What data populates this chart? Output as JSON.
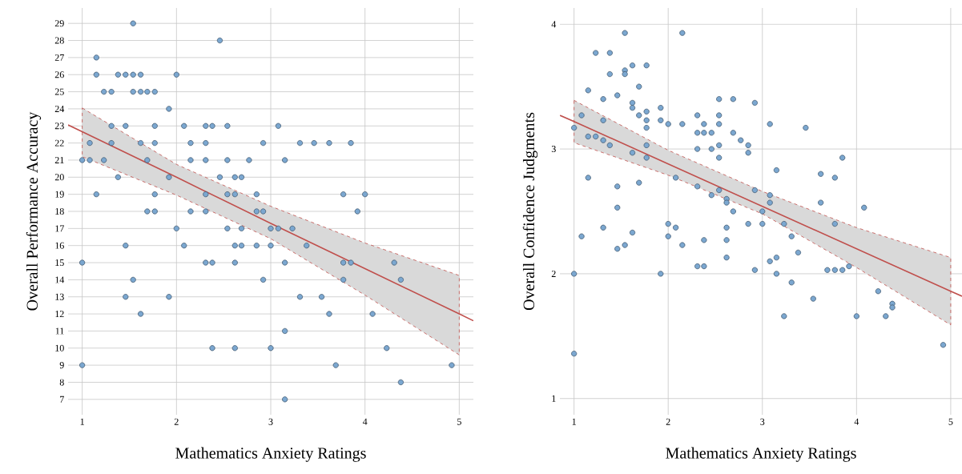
{
  "chart_data": [
    {
      "type": "scatter",
      "xlabel": "Mathematics Anxiety Ratings",
      "ylabel": "Overall Performance Accuracy",
      "xlim": [
        0.85,
        5.15
      ],
      "ylim": [
        6.1,
        29.9
      ],
      "xticks": [
        1,
        2,
        3,
        4,
        5
      ],
      "yticks": [
        7,
        8,
        9,
        10,
        11,
        12,
        13,
        14,
        15,
        16,
        17,
        18,
        19,
        20,
        21,
        22,
        23,
        24,
        25,
        26,
        27,
        28,
        29
      ],
      "grid": true,
      "series": [
        {
          "type": "line",
          "color": "#c0504d",
          "line_style": "solid",
          "x": [
            0.85,
            1,
            2,
            3,
            4,
            5,
            5.15
          ],
          "values": [
            23.06,
            22.66,
            20.0,
            17.3,
            14.65,
            12.0,
            11.6
          ],
          "lower": [
            null,
            21.2,
            18.95,
            16.4,
            13.1,
            9.6,
            null
          ],
          "upper": [
            null,
            24.05,
            20.75,
            18.3,
            16.15,
            14.25,
            null
          ]
        },
        {
          "color": "#7ba7d0",
          "marker": "circle",
          "x": [
            1.54,
            2.46,
            1.15,
            1.15,
            1.38,
            1.46,
            1.54,
            1.62,
            2.0,
            1.23,
            1.31,
            1.54,
            1.62,
            1.69,
            1.77,
            1.92,
            1.31,
            1.46,
            1.77,
            2.08,
            2.31,
            2.38,
            2.54,
            3.08,
            1.08,
            1.31,
            1.62,
            1.77,
            2.15,
            2.31,
            2.92,
            3.31,
            3.46,
            3.62,
            3.85,
            1.0,
            1.08,
            1.23,
            1.69,
            2.15,
            2.31,
            2.54,
            2.77,
            3.15,
            1.38,
            1.92,
            2.46,
            2.62,
            2.69,
            1.15,
            1.77,
            2.31,
            2.54,
            2.62,
            2.85,
            3.77,
            4.0,
            1.69,
            1.77,
            2.15,
            2.31,
            2.85,
            2.92,
            3.92,
            2.0,
            2.54,
            2.69,
            3.0,
            3.08,
            3.23,
            1.46,
            2.08,
            2.62,
            2.69,
            2.85,
            3.0,
            3.38,
            1.0,
            2.31,
            2.38,
            2.62,
            3.15,
            3.77,
            3.85,
            4.31,
            1.54,
            2.92,
            3.77,
            4.38,
            1.46,
            1.92,
            3.31,
            3.54,
            1.62,
            3.62,
            4.08,
            3.15,
            2.38,
            2.62,
            3.0,
            4.23,
            1.0,
            3.69,
            4.92,
            4.38,
            3.15
          ],
          "values": [
            29,
            28,
            27,
            26,
            26,
            26,
            26,
            26,
            26,
            25,
            25,
            25,
            25,
            25,
            25,
            24,
            23,
            23,
            23,
            23,
            23,
            23,
            23,
            23,
            22,
            22,
            22,
            22,
            22,
            22,
            22,
            22,
            22,
            22,
            22,
            21,
            21,
            21,
            21,
            21,
            21,
            21,
            21,
            21,
            20,
            20,
            20,
            20,
            20,
            19,
            19,
            19,
            19,
            19,
            19,
            19,
            19,
            18,
            18,
            18,
            18,
            18,
            18,
            18,
            17,
            17,
            17,
            17,
            17,
            17,
            16,
            16,
            16,
            16,
            16,
            16,
            16,
            15,
            15,
            15,
            15,
            15,
            15,
            15,
            15,
            14,
            14,
            14,
            14,
            13,
            13,
            13,
            13,
            12,
            12,
            12,
            11,
            10,
            10,
            10,
            10,
            9,
            9,
            9,
            8,
            7
          ]
        }
      ]
    },
    {
      "type": "scatter",
      "xlabel": "Mathematics Anxiety Ratings",
      "ylabel": "Overall Confidence Judgments",
      "xlim": [
        0.85,
        5.12
      ],
      "ylim": [
        0.87,
        4.13
      ],
      "xticks": [
        1,
        2,
        3,
        4,
        5
      ],
      "yticks": [
        1,
        2,
        3,
        4
      ],
      "grid": true,
      "series": [
        {
          "type": "line",
          "color": "#c0504d",
          "line_style": "solid",
          "x": [
            0.85,
            1,
            2,
            3,
            4,
            5,
            5.12
          ],
          "values": [
            3.27,
            3.22,
            2.88,
            2.54,
            2.2,
            1.86,
            1.82
          ],
          "lower": [
            null,
            3.05,
            2.79,
            2.48,
            2.05,
            1.59,
            null
          ],
          "upper": [
            null,
            3.39,
            2.99,
            2.66,
            2.37,
            2.13,
            null
          ]
        },
        {
          "color": "#7ba7d0",
          "marker": "circle",
          "x": [
            1.54,
            2.15,
            1.23,
            1.38,
            1.62,
            1.77,
            1.38,
            1.54,
            1.54,
            1.69,
            1.15,
            1.31,
            1.46,
            2.54,
            2.69,
            2.92,
            1.62,
            1.62,
            1.92,
            1.77,
            1.69,
            2.31,
            2.54,
            1.08,
            1.31,
            1.77,
            1.92,
            2.0,
            2.15,
            2.38,
            2.54,
            1.0,
            1.77,
            2.31,
            2.38,
            2.46,
            2.69,
            1.15,
            1.23,
            1.31,
            2.77,
            1.38,
            2.54,
            2.85,
            2.31,
            2.46,
            2.85,
            1.62,
            1.77,
            1.77,
            2.54,
            1.15,
            2.08,
            1.46,
            1.69,
            2.31,
            2.54,
            2.46,
            2.62,
            2.62,
            2.92,
            2.69,
            1.46,
            1.31,
            1.62,
            1.08,
            2.0,
            2.08,
            2.0,
            2.85,
            2.62,
            2.38,
            2.62,
            2.15,
            1.54,
            1.46,
            2.62,
            2.31,
            2.38,
            2.92,
            1.0,
            1.92,
            1.0,
            3.08,
            3.46,
            3.85,
            3.15,
            3.62,
            3.77,
            3.08,
            3.08,
            3.62,
            4.08,
            3.0,
            3.0,
            3.23,
            3.77,
            3.31,
            3.38,
            3.15,
            3.08,
            3.69,
            3.77,
            3.85,
            3.92,
            3.15,
            3.31,
            3.54,
            3.23,
            4.0,
            4.23,
            4.31,
            4.38,
            4.38,
            4.92
          ],
          "values": [
            3.93,
            3.93,
            3.77,
            3.77,
            3.67,
            3.67,
            3.6,
            3.63,
            3.6,
            3.5,
            3.47,
            3.4,
            3.43,
            3.4,
            3.4,
            3.37,
            3.37,
            3.33,
            3.33,
            3.3,
            3.27,
            3.27,
            3.27,
            3.27,
            3.23,
            3.23,
            3.23,
            3.2,
            3.2,
            3.2,
            3.2,
            3.17,
            3.17,
            3.13,
            3.13,
            3.13,
            3.13,
            3.1,
            3.1,
            3.07,
            3.07,
            3.03,
            3.03,
            3.03,
            3.0,
            3.0,
            2.97,
            2.97,
            3.03,
            2.93,
            2.93,
            2.77,
            2.77,
            2.7,
            2.73,
            2.7,
            2.67,
            2.63,
            2.6,
            2.57,
            2.67,
            2.5,
            2.53,
            2.37,
            2.33,
            2.3,
            2.4,
            2.37,
            2.3,
            2.4,
            2.37,
            2.27,
            2.27,
            2.23,
            2.23,
            2.2,
            2.13,
            2.06,
            2.06,
            2.03,
            2.0,
            2.0,
            1.36,
            3.2,
            3.17,
            2.93,
            2.83,
            2.8,
            2.77,
            2.63,
            2.57,
            2.57,
            2.53,
            2.5,
            2.4,
            2.4,
            2.4,
            2.3,
            2.17,
            2.13,
            2.1,
            2.03,
            2.03,
            2.03,
            2.06,
            2.0,
            1.93,
            1.8,
            1.66,
            1.66,
            1.86,
            1.66,
            1.76,
            1.73,
            1.43
          ]
        }
      ]
    }
  ]
}
